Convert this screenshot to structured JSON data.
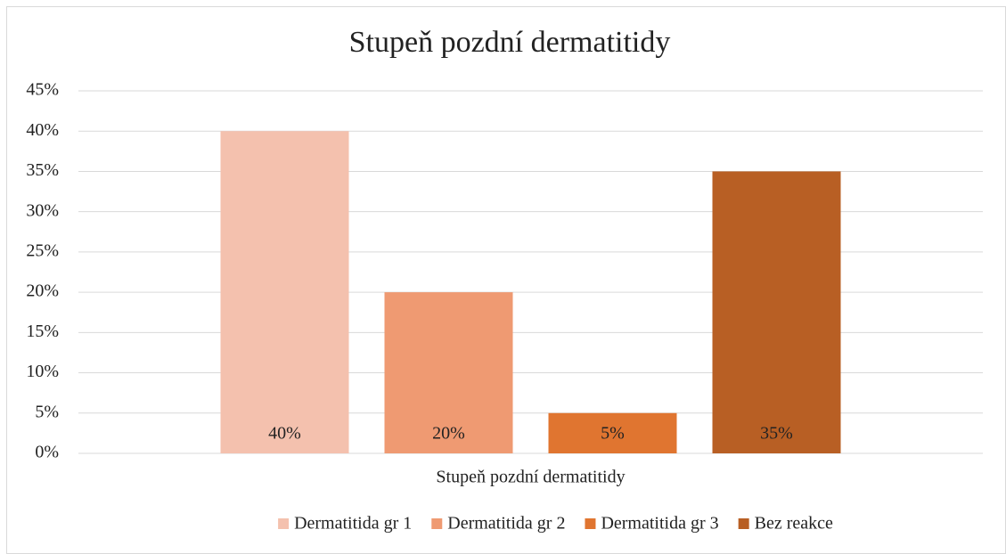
{
  "chart_data": {
    "type": "bar",
    "title": "Stupeň pozdní dermatitidy",
    "categories": [
      "Stupeň pozdní dermatitidy"
    ],
    "series": [
      {
        "name": "Dermatitida gr 1",
        "color": "#f4c1ae",
        "values": [
          40
        ],
        "value_labels": [
          "40%"
        ]
      },
      {
        "name": "Dermatitida gr 2",
        "color": "#ef9a72",
        "values": [
          20
        ],
        "value_labels": [
          "20%"
        ]
      },
      {
        "name": "Dermatitida gr 3",
        "color": "#e07530",
        "values": [
          5
        ],
        "value_labels": [
          "5%"
        ]
      },
      {
        "name": "Bez reakce",
        "color": "#b85f24",
        "values": [
          35
        ],
        "value_labels": [
          "35%"
        ]
      }
    ],
    "ylim": [
      0,
      45
    ],
    "yticks": [
      {
        "value": 0,
        "label": "0%"
      },
      {
        "value": 5,
        "label": "5%"
      },
      {
        "value": 10,
        "label": "10%"
      },
      {
        "value": 15,
        "label": "15%"
      },
      {
        "value": 20,
        "label": "20%"
      },
      {
        "value": 25,
        "label": "25%"
      },
      {
        "value": 30,
        "label": "30%"
      },
      {
        "value": 35,
        "label": "35%"
      },
      {
        "value": 40,
        "label": "40%"
      },
      {
        "value": 45,
        "label": "45%"
      }
    ],
    "grid": true,
    "legend": "bottom"
  }
}
